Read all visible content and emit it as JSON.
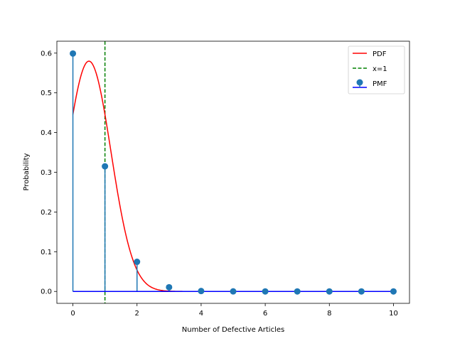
{
  "chart_data": {
    "type": "line",
    "title": "",
    "xlabel": "Number of Defective Articles",
    "ylabel": "Probability",
    "xlim": [
      -0.5,
      10.5
    ],
    "ylim": [
      -0.03,
      0.63
    ],
    "x_ticks": [
      0,
      2,
      4,
      6,
      8,
      10
    ],
    "x_tick_labels": [
      "0",
      "2",
      "4",
      "6",
      "8",
      "10"
    ],
    "y_ticks": [
      0.0,
      0.1,
      0.2,
      0.3,
      0.4,
      0.5,
      0.6
    ],
    "y_tick_labels": [
      "0.0",
      "0.1",
      "0.2",
      "0.3",
      "0.4",
      "0.5",
      "0.6"
    ],
    "grid": false,
    "legend_position": "top-right",
    "pmf": {
      "name": "PMF",
      "x": [
        0,
        1,
        2,
        3,
        4,
        5,
        6,
        7,
        8,
        9,
        10
      ],
      "y": [
        0.599,
        0.315,
        0.0746,
        0.0105,
        0.001,
        0.0001,
        0.0,
        0.0,
        0.0,
        0.0,
        0.0
      ],
      "marker_color": "#1f77b4",
      "stem_color": "#1f77b4",
      "baseline_color": "#0000ff"
    },
    "pdf": {
      "name": "PDF",
      "mean": 0.5,
      "std": 0.688,
      "x_range": [
        0,
        10
      ],
      "color": "#ff0000"
    },
    "vline": {
      "name": "x=1",
      "x": 1,
      "color": "#008000"
    }
  }
}
